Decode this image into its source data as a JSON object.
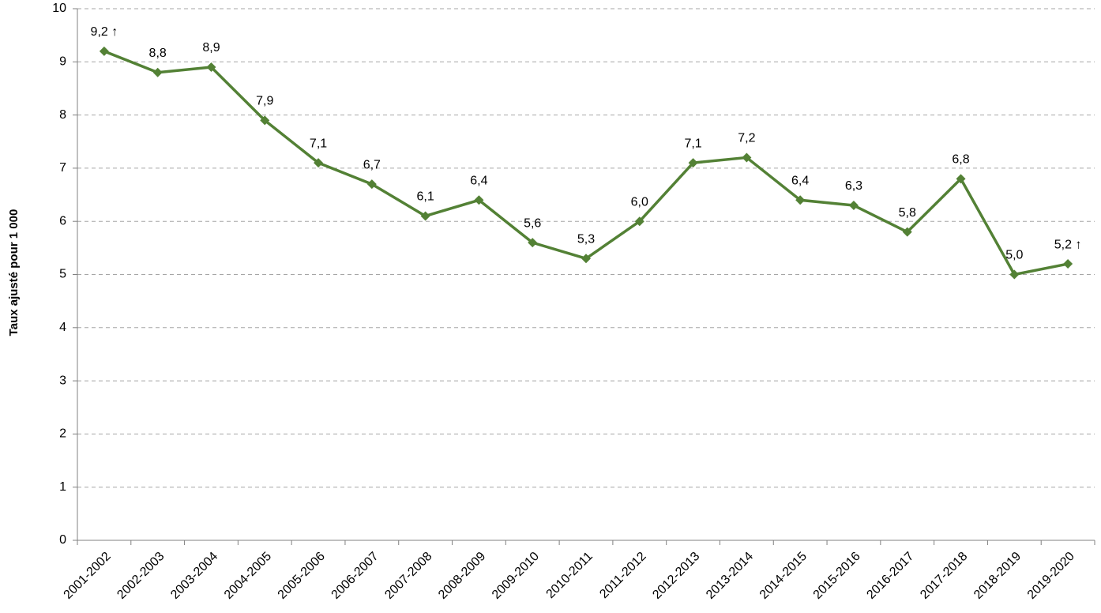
{
  "chart_data": {
    "type": "line",
    "y_label": "Taux ajusté pour 1 000",
    "categories": [
      "2001-2002",
      "2002-2003",
      "2003-2004",
      "2004-2005",
      "2005-2006",
      "2006-2007",
      "2007-2008",
      "2008-2009",
      "2009-2010",
      "2010-2011",
      "2011-2012",
      "2012-2013",
      "2013-2014",
      "2014-2015",
      "2015-2016",
      "2016-2017",
      "2017-2018",
      "2018-2019",
      "2019-2020"
    ],
    "series": [
      {
        "color": "#538135",
        "values": [
          9.2,
          8.8,
          8.9,
          7.9,
          7.1,
          6.7,
          6.1,
          6.4,
          5.6,
          5.3,
          6.0,
          7.1,
          7.2,
          6.4,
          6.3,
          5.8,
          6.8,
          5.0,
          5.2
        ],
        "value_labels": [
          "9,2 ↑",
          "8,8",
          "8,9",
          "7,9",
          "7,1",
          "6,7",
          "6,1",
          "6,4",
          "5,6",
          "5,3",
          "6,0",
          "7,1",
          "7,2",
          "6,4",
          "6,3",
          "5,8",
          "6,8",
          "5,0",
          "5,2 ↑"
        ]
      }
    ],
    "ylim": [
      0,
      10
    ],
    "yticks": [
      0,
      1,
      2,
      3,
      4,
      5,
      6,
      7,
      8,
      9,
      10
    ],
    "grid": true
  }
}
